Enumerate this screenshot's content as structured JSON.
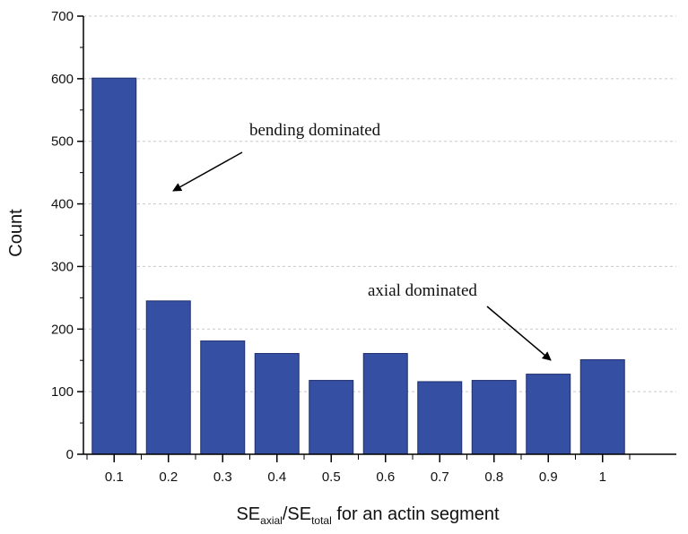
{
  "chart_data": {
    "type": "bar",
    "categories": [
      "0.1",
      "0.2",
      "0.3",
      "0.4",
      "0.5",
      "0.6",
      "0.7",
      "0.8",
      "0.9",
      "1"
    ],
    "values": [
      601,
      245,
      181,
      161,
      118,
      161,
      116,
      118,
      128,
      151
    ],
    "ylabel": "Count",
    "xlabel": {
      "part1": "SE",
      "sub1": "axial",
      "part2": "/SE",
      "sub2": "total",
      "part3": " for an actin segment"
    },
    "yticks": [
      0,
      100,
      200,
      300,
      400,
      500,
      600,
      700
    ],
    "ylim": [
      0,
      700
    ],
    "grid": "horizontal dashed",
    "bar_color": "#3550a3",
    "annotations": [
      {
        "text": "bending dominated",
        "target_category": "0.1"
      },
      {
        "text": "axial dominated",
        "target_category": "0.9"
      }
    ]
  }
}
